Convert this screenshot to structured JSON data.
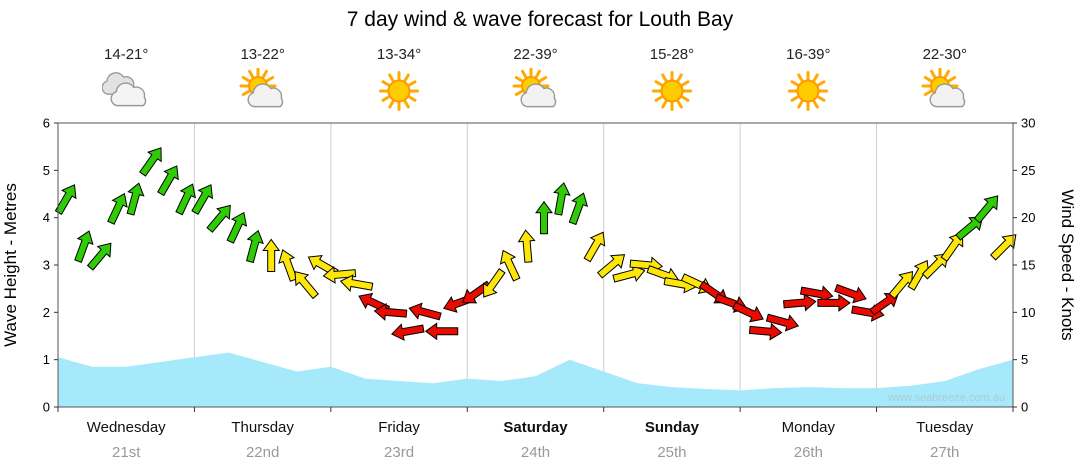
{
  "title": "7 day wind & wave forecast for Louth Bay",
  "watermark": "www.seabreeze.com.au",
  "days": [
    {
      "name": "Wednesday",
      "date": "21st",
      "temp": "14-21°",
      "icon": "cloudy",
      "bold": false
    },
    {
      "name": "Thursday",
      "date": "22nd",
      "temp": "13-22°",
      "icon": "partly",
      "bold": false
    },
    {
      "name": "Friday",
      "date": "23rd",
      "temp": "13-34°",
      "icon": "sunny",
      "bold": false
    },
    {
      "name": "Saturday",
      "date": "24th",
      "temp": "22-39°",
      "icon": "partly",
      "bold": true
    },
    {
      "name": "Sunday",
      "date": "25th",
      "temp": "15-28°",
      "icon": "sunny",
      "bold": true
    },
    {
      "name": "Monday",
      "date": "26th",
      "temp": "16-39°",
      "icon": "sunny",
      "bold": false
    },
    {
      "name": "Tuesday",
      "date": "27th",
      "temp": "22-30°",
      "icon": "partly",
      "bold": false
    }
  ],
  "chart_data": {
    "type": "line",
    "title": "7 day wind & wave forecast for Louth Bay",
    "legend": "off",
    "grid": "vertical-day-separators",
    "x_categories": [
      "Wednesday 21st",
      "Thursday 22nd",
      "Friday 23rd",
      "Saturday 24th",
      "Sunday 25th",
      "Monday 26th",
      "Tuesday 27th"
    ],
    "left_axis": {
      "label": "Wave Height - Metres",
      "min": 0,
      "max": 6,
      "ticks": [
        0,
        1,
        2,
        3,
        4,
        5,
        6
      ]
    },
    "right_axis": {
      "label": "Wind Speed - Knots",
      "min": 0,
      "max": 30,
      "ticks": [
        0,
        5,
        10,
        15,
        20,
        25,
        30
      ]
    },
    "palette": {
      "g": "#2fcc05",
      "y": "#ffe609",
      "r": "#ea0b00",
      "wave": "#a5e9fb",
      "outline": "#000000"
    },
    "wind_series": {
      "name": "Wind Speed",
      "units": "knots",
      "points_per_day": 8,
      "knots": [
        [
          22,
          17,
          16,
          21,
          22,
          26,
          24,
          22
        ],
        [
          22,
          20,
          19,
          17,
          16,
          15,
          13,
          15
        ],
        [
          14,
          13,
          11,
          10,
          8,
          10,
          8,
          11
        ],
        [
          12,
          13,
          15,
          17,
          20,
          22,
          21,
          17
        ],
        [
          15,
          14,
          15,
          14,
          13,
          13,
          12,
          11
        ],
        [
          10,
          8,
          9,
          11,
          12,
          11,
          12,
          10
        ],
        [
          11,
          13,
          14,
          15,
          17,
          19,
          21,
          17
        ]
      ],
      "colors": [
        [
          "g",
          "g",
          "g",
          "g",
          "g",
          "g",
          "g",
          "g"
        ],
        [
          "g",
          "g",
          "g",
          "g",
          "y",
          "y",
          "y",
          "y"
        ],
        [
          "y",
          "y",
          "r",
          "r",
          "r",
          "r",
          "r",
          "r"
        ],
        [
          "r",
          "y",
          "y",
          "y",
          "g",
          "g",
          "g",
          "y"
        ],
        [
          "y",
          "y",
          "y",
          "y",
          "y",
          "y",
          "r",
          "r"
        ],
        [
          "r",
          "r",
          "r",
          "r",
          "r",
          "r",
          "r",
          "r"
        ],
        [
          "r",
          "y",
          "y",
          "y",
          "y",
          "g",
          "g",
          "y"
        ]
      ],
      "dirs_deg": [
        [
          -60,
          -70,
          -50,
          -65,
          -75,
          -55,
          -60,
          -65
        ],
        [
          -60,
          -50,
          -65,
          -75,
          -90,
          -110,
          -130,
          -150
        ],
        [
          175,
          190,
          205,
          185,
          170,
          195,
          180,
          160
        ],
        [
          145,
          125,
          -115,
          -95,
          -90,
          -80,
          -70,
          -60
        ],
        [
          -40,
          -15,
          5,
          20,
          10,
          25,
          35,
          20
        ],
        [
          25,
          5,
          15,
          -5,
          10,
          0,
          20,
          10
        ],
        [
          -35,
          -50,
          -60,
          -45,
          -55,
          -40,
          -50,
          -45
        ]
      ]
    },
    "wave_series": {
      "name": "Wave Height",
      "units": "metres",
      "x": [
        0,
        0.25,
        0.5,
        0.75,
        1.0,
        1.25,
        1.5,
        1.75,
        2.0,
        2.25,
        2.5,
        2.75,
        3.0,
        3.25,
        3.5,
        3.75,
        4.0,
        4.25,
        4.5,
        4.75,
        5.0,
        5.25,
        5.5,
        5.75,
        6.0,
        6.25,
        6.5,
        6.75,
        7.0
      ],
      "heights": [
        1.05,
        0.85,
        0.85,
        0.95,
        1.05,
        1.15,
        0.95,
        0.75,
        0.85,
        0.6,
        0.55,
        0.5,
        0.6,
        0.55,
        0.65,
        1.0,
        0.75,
        0.5,
        0.42,
        0.38,
        0.35,
        0.4,
        0.42,
        0.4,
        0.4,
        0.45,
        0.55,
        0.8,
        1.0
      ]
    }
  }
}
